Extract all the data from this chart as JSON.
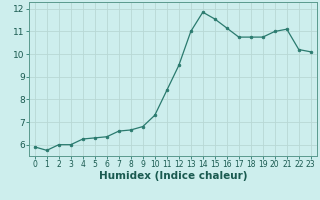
{
  "x": [
    0,
    1,
    2,
    3,
    4,
    5,
    6,
    7,
    8,
    9,
    10,
    11,
    12,
    13,
    14,
    15,
    16,
    17,
    18,
    19,
    20,
    21,
    22,
    23
  ],
  "y": [
    5.9,
    5.75,
    6.0,
    6.0,
    6.25,
    6.3,
    6.35,
    6.6,
    6.65,
    6.8,
    7.3,
    8.4,
    9.5,
    11.0,
    11.85,
    11.55,
    11.15,
    10.75,
    10.75,
    10.75,
    11.0,
    11.1,
    10.2,
    10.1
  ],
  "line_color": "#2a7a6e",
  "marker": "o",
  "marker_size": 2.0,
  "bg_color": "#cdeeed",
  "grid_color": "#b8d8d5",
  "xlabel": "Humidex (Indice chaleur)",
  "xlim": [
    -0.5,
    23.5
  ],
  "ylim": [
    5.5,
    12.3
  ],
  "yticks": [
    6,
    7,
    8,
    9,
    10,
    11,
    12
  ],
  "xticks": [
    0,
    1,
    2,
    3,
    4,
    5,
    6,
    7,
    8,
    9,
    10,
    11,
    12,
    13,
    14,
    15,
    16,
    17,
    18,
    19,
    20,
    21,
    22,
    23
  ],
  "tick_color": "#2a7a6e",
  "label_color": "#1a5a50",
  "spine_color": "#5a9a8e",
  "xlabel_fontsize": 7.5,
  "tick_fontsize_x": 5.5,
  "tick_fontsize_y": 6.5
}
